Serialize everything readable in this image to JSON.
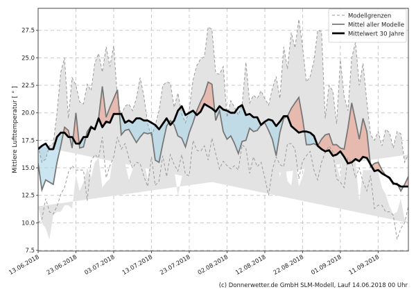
{
  "chart_data": {
    "type": "line",
    "ylabel": "Mittlere Lufttemperatur [ ° ]",
    "xlabel": "",
    "start_date": "13.06.2018",
    "ylim": [
      7.44,
      29.5
    ],
    "yticks": [
      "7.5",
      "10.0",
      "12.5",
      "15.0",
      "17.5",
      "20.0",
      "22.5",
      "25.0",
      "27.5"
    ],
    "xticks": [
      "13.06.2018",
      "23.06.2018",
      "03.07.2018",
      "13.07.2018",
      "23.07.2018",
      "02.08.2018",
      "12.08.2018",
      "22.08.2018",
      "01.09.2018",
      "11.09.2018"
    ],
    "grid": true,
    "legend_position": "top-right",
    "series": [
      {
        "name": "Modellgrenzen",
        "role": "max",
        "values": [
          17.0,
          15.5,
          15.8,
          17.0,
          17.2,
          20.0,
          23.7,
          25.0,
          19.5,
          23.2,
          22.5,
          21.0,
          20.8,
          22.6,
          22.0,
          24.5,
          25.4,
          23.7,
          26.0,
          24.2,
          26.1,
          21.3,
          19.8,
          20.6,
          20.8,
          20.2,
          21.3,
          23.2,
          21.5,
          19.0,
          17.8,
          18.9,
          20.2,
          22.5,
          22.8,
          22.7,
          20.5,
          21.8,
          19.9,
          19.1,
          20.3,
          23.0,
          24.3,
          24.9,
          25.1,
          27.8,
          27.6,
          23.6,
          23.5,
          24.2,
          19.6,
          21.1,
          20.5,
          19.8,
          20.7,
          24.6,
          20.9,
          21.6,
          21.3,
          22.0,
          21.3,
          20.7,
          22.2,
          23.3,
          21.3,
          26.0,
          24.0,
          27.3,
          25.9,
          28.5,
          26.0,
          22.8,
          23.3,
          24.7,
          27.5,
          27.4,
          19.5,
          22.5,
          22.0,
          19.0,
          24.8,
          21.5,
          20.2,
          25.0,
          26.4,
          22.5,
          24.5,
          21.0,
          18.0,
          17.5,
          18.3,
          17.0,
          18.5,
          18.2,
          16.8,
          18.3,
          18.1,
          15.5,
          16.2
        ]
      },
      {
        "name": "Modellgrenzen",
        "role": "min",
        "values": [
          10.0,
          10.3,
          12.2,
          11.0,
          10.8,
          11.5,
          12.6,
          13.2,
          14.6,
          15.2,
          14.8,
          14.8,
          14.8,
          12.0,
          15.6,
          16.2,
          15.9,
          17.8,
          14.1,
          15.2,
          16.0,
          17.8,
          16.7,
          17.2,
          15.9,
          15.0,
          15.5,
          15.4,
          14.2,
          13.3,
          16.0,
          13.4,
          13.8,
          16.1,
          14.2,
          16.2,
          15.3,
          14.7,
          16.2,
          14.4,
          14.3,
          17.5,
          16.6,
          16.5,
          17.0,
          15.7,
          17.7,
          16.3,
          14.9,
          15.6,
          15.2,
          14.9,
          15.2,
          14.8,
          17.1,
          16.8,
          14.5,
          16.0,
          15.1,
          15.5,
          14.1,
          12.5,
          14.8,
          16.0,
          15.3,
          15.1,
          17.2,
          17.2,
          16.7,
          14.0,
          15.6,
          16.1,
          16.5,
          14.8,
          13.9,
          15.5,
          16.4,
          17.0,
          16.5,
          14.0,
          13.7,
          13.2,
          15.9,
          15.5,
          14.1,
          15.0,
          13.7,
          12.9,
          14.3,
          11.3,
          11.6,
          11.6,
          11.0,
          11.0,
          10.7,
          8.5,
          9.5,
          10.0,
          11.5
        ]
      },
      {
        "name": "Mittel aller Modelle",
        "values": [
          15.4,
          13.0,
          13.9,
          13.7,
          13.5,
          15.5,
          17.0,
          18.7,
          18.4,
          16.8,
          20.0,
          16.8,
          16.9,
          18.3,
          18.8,
          18.5,
          19.5,
          22.4,
          19.6,
          20.5,
          21.3,
          22.1,
          18.0,
          18.4,
          18.5,
          17.9,
          17.3,
          17.8,
          18.2,
          18.1,
          18.2,
          15.7,
          15.5,
          17.2,
          18.8,
          19.3,
          18.9,
          17.9,
          17.7,
          16.9,
          18.2,
          19.1,
          20.2,
          21.0,
          21.7,
          22.8,
          22.6,
          19.3,
          20.2,
          18.3,
          17.6,
          17.9,
          17.2,
          16.3,
          17.4,
          17.5,
          18.6,
          18.3,
          18.4,
          18.9,
          19.1,
          18.4,
          17.6,
          16.1,
          18.2,
          19.5,
          19.7,
          20.4,
          20.9,
          21.4,
          19.5,
          17.1,
          17.1,
          17.2,
          17.0,
          17.6,
          18.0,
          18.1,
          17.1,
          17.1,
          16.8,
          16.7,
          18.6,
          20.9,
          19.3,
          17.6,
          19.5,
          18.3,
          15.1,
          15.4,
          15.5,
          14.8,
          14.3,
          14.0,
          13.5,
          13.6,
          12.9,
          13.5,
          14.2
        ]
      },
      {
        "name": "Mittelwert 30 Jahre",
        "values": [
          16.7,
          17.0,
          17.2,
          16.7,
          16.7,
          17.8,
          18.2,
          18.2,
          17.8,
          17.8,
          17.2,
          17.2,
          17.8,
          17.8,
          18.7,
          18.5,
          19.5,
          18.7,
          19.2,
          19.1,
          19.9,
          19.9,
          19.9,
          19.1,
          19.3,
          19.1,
          19.5,
          19.5,
          19.3,
          19.3,
          19.1,
          18.9,
          18.5,
          19.0,
          19.5,
          18.9,
          19.3,
          20.2,
          20.6,
          19.8,
          20.0,
          20.2,
          19.8,
          20.1,
          20.8,
          20.6,
          20.4,
          20.1,
          20.6,
          20.3,
          20.2,
          20.0,
          20.0,
          20.5,
          20.7,
          19.8,
          19.9,
          19.6,
          19.6,
          18.9,
          19.2,
          19.4,
          19.3,
          18.8,
          19.2,
          19.7,
          19.7,
          18.8,
          18.5,
          18.2,
          18.3,
          18.3,
          18.2,
          17.9,
          17.0,
          16.7,
          16.5,
          16.6,
          16.1,
          16.2,
          16.5,
          16.0,
          15.4,
          15.5,
          15.8,
          15.6,
          16.0,
          15.9,
          15.3,
          14.7,
          14.8,
          14.5,
          14.3,
          14.1,
          13.6,
          13.5,
          13.3,
          13.3,
          13.3
        ]
      }
    ],
    "colors": {
      "envelope": "#e3e3e3",
      "above": "#e8a898",
      "below": "#a8d4e8",
      "model_mean": "#777777",
      "climate": "#000000"
    }
  },
  "legend": {
    "items": [
      "Modellgrenzen",
      "Mittel aller Modelle",
      "Mittelwert 30 Jahre"
    ]
  },
  "footer": "(c) Donnerwetter.de GmbH SLM-Modell, Lauf 14.06.2018 00 Uhr"
}
